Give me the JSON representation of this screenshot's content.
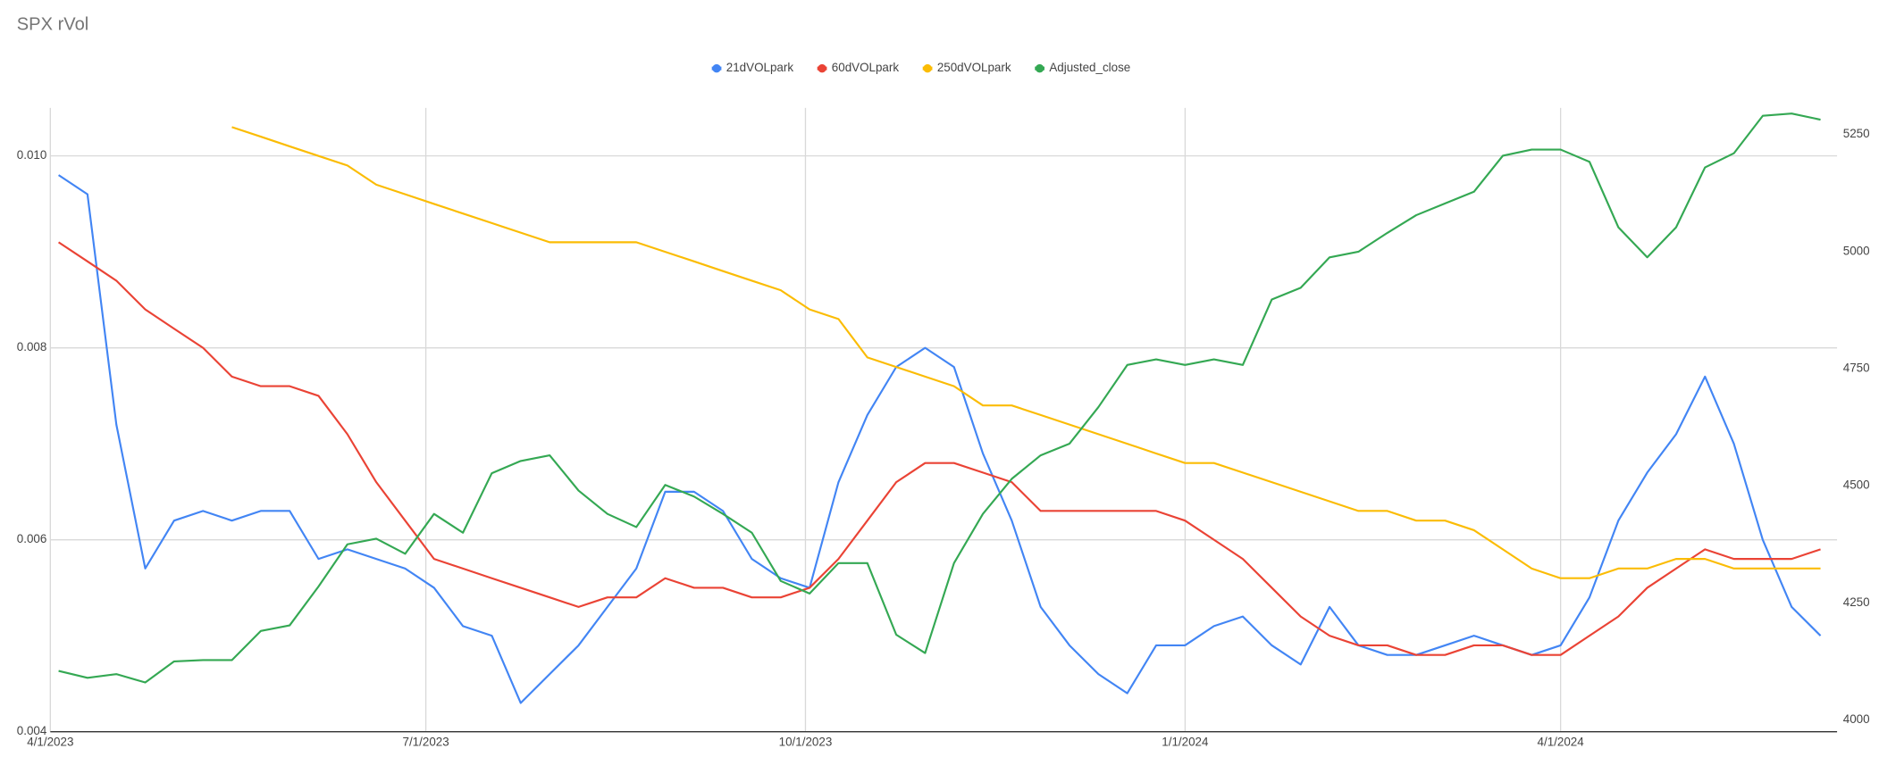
{
  "chart_data": {
    "type": "line",
    "title": "SPX rVol",
    "legend": "top",
    "grid": true,
    "x": [
      "4/3/2023",
      "4/10/2023",
      "4/17/2023",
      "4/24/2023",
      "5/1/2023",
      "5/8/2023",
      "5/15/2023",
      "5/22/2023",
      "5/29/2023",
      "6/5/2023",
      "6/12/2023",
      "6/19/2023",
      "6/26/2023",
      "7/3/2023",
      "7/10/2023",
      "7/17/2023",
      "7/24/2023",
      "7/31/2023",
      "8/7/2023",
      "8/14/2023",
      "8/21/2023",
      "8/28/2023",
      "9/4/2023",
      "9/11/2023",
      "9/18/2023",
      "9/25/2023",
      "10/2/2023",
      "10/9/2023",
      "10/16/2023",
      "10/23/2023",
      "10/30/2023",
      "11/6/2023",
      "11/13/2023",
      "11/20/2023",
      "11/27/2023",
      "12/4/2023",
      "12/11/2023",
      "12/18/2023",
      "12/25/2023",
      "1/1/2024",
      "1/8/2024",
      "1/15/2024",
      "1/22/2024",
      "1/29/2024",
      "2/5/2024",
      "2/12/2024",
      "2/19/2024",
      "2/26/2024",
      "3/4/2024",
      "3/11/2024",
      "3/18/2024",
      "3/25/2024",
      "4/1/2024",
      "4/8/2024",
      "4/15/2024",
      "4/22/2024",
      "4/29/2024",
      "5/6/2024",
      "5/13/2024",
      "5/20/2024",
      "5/27/2024",
      "6/3/2024"
    ],
    "xlim": [
      "4/1/2023",
      "6/7/2024"
    ],
    "xticks": [
      "4/1/2023",
      "7/1/2023",
      "10/1/2023",
      "1/1/2024",
      "4/1/2024"
    ],
    "ylim": [
      0.004,
      0.0105
    ],
    "yticks": [
      0.004,
      0.006,
      0.008,
      {
        "value": 0.01,
        "label": "0.010"
      }
    ],
    "y2lim": [
      3985,
      5317
    ],
    "y2ticks": [
      4000,
      4250,
      4500,
      4750,
      5000,
      5250
    ],
    "series": [
      {
        "name": "21dVOLpark",
        "color": "#4285f4",
        "values": [
          0.0098,
          0.0096,
          0.0072,
          0.0057,
          0.0062,
          0.0063,
          0.0062,
          0.0063,
          0.0063,
          0.0058,
          0.0059,
          0.0058,
          0.0057,
          0.0055,
          0.0051,
          0.005,
          0.0043,
          0.0046,
          0.0049,
          0.0053,
          0.0057,
          0.0065,
          0.0065,
          0.0063,
          0.0058,
          0.0056,
          0.0055,
          0.0066,
          0.0073,
          0.0078,
          0.008,
          0.0078,
          0.0069,
          0.0062,
          0.0053,
          0.0049,
          0.0046,
          0.0044,
          0.0049,
          0.0049,
          0.0051,
          0.0052,
          0.0049,
          0.0047,
          0.0053,
          0.0049,
          0.0048,
          0.0048,
          0.0049,
          0.005,
          0.0049,
          0.0048,
          0.0049,
          0.0054,
          0.0062,
          0.0067,
          0.0071,
          0.0077,
          0.007,
          0.006,
          0.0053,
          0.005
        ]
      },
      {
        "name": "60dVOLpark",
        "color": "#ea4335",
        "values": [
          0.0091,
          0.0089,
          0.0087,
          0.0084,
          0.0082,
          0.008,
          0.0077,
          0.0076,
          0.0076,
          0.0075,
          0.0071,
          0.0066,
          0.0062,
          0.0058,
          0.0057,
          0.0056,
          0.0055,
          0.0054,
          0.0053,
          0.0054,
          0.0054,
          0.0056,
          0.0055,
          0.0055,
          0.0054,
          0.0054,
          0.0055,
          0.0058,
          0.0062,
          0.0066,
          0.0068,
          0.0068,
          0.0067,
          0.0066,
          0.0063,
          0.0063,
          0.0063,
          0.0063,
          0.0063,
          0.0062,
          0.006,
          0.0058,
          0.0055,
          0.0052,
          0.005,
          0.0049,
          0.0049,
          0.0048,
          0.0048,
          0.0049,
          0.0049,
          0.0048,
          0.0048,
          0.005,
          0.0052,
          0.0055,
          0.0057,
          0.0059,
          0.0058,
          0.0058,
          0.0058,
          0.0059
        ]
      },
      {
        "name": "250dVOLpark",
        "color": "#fbbc04",
        "values": [
          null,
          null,
          null,
          null,
          null,
          null,
          0.0103,
          0.0102,
          0.0101,
          0.01,
          0.0099,
          0.0097,
          0.0096,
          0.0095,
          0.0094,
          0.0093,
          0.0092,
          0.0091,
          0.0091,
          0.0091,
          0.0091,
          0.009,
          0.0089,
          0.0088,
          0.0087,
          0.0086,
          0.0084,
          0.0083,
          0.0079,
          0.0078,
          0.0077,
          0.0076,
          0.0074,
          0.0074,
          0.0073,
          0.0072,
          0.0071,
          0.007,
          0.0069,
          0.0068,
          0.0068,
          0.0067,
          0.0066,
          0.0065,
          0.0064,
          0.0063,
          0.0063,
          0.0062,
          0.0062,
          0.0061,
          0.0059,
          0.0057,
          0.0056,
          0.0056,
          0.0057,
          0.0057,
          0.0058,
          0.0058,
          0.0057,
          0.0057,
          0.0057,
          0.0057
        ]
      },
      {
        "name": "Adjusted_close",
        "color": "#34a853",
        "axis": "y2",
        "values": [
          4115,
          4100,
          4108,
          4090,
          4135,
          4138,
          4138,
          4200,
          4212,
          4295,
          4385,
          4397,
          4365,
          4450,
          4410,
          4537,
          4563,
          4575,
          4500,
          4450,
          4422,
          4512,
          4487,
          4450,
          4410,
          4307,
          4280,
          4345,
          4345,
          4192,
          4153,
          4345,
          4450,
          4525,
          4575,
          4600,
          4678,
          4768,
          4780,
          4768,
          4780,
          4768,
          4908,
          4933,
          4998,
          5010,
          5050,
          5088,
          5113,
          5138,
          5215,
          5228,
          5228,
          5202,
          5062,
          4998,
          5062,
          5190,
          5220,
          5300,
          5305,
          5292
        ]
      }
    ]
  }
}
